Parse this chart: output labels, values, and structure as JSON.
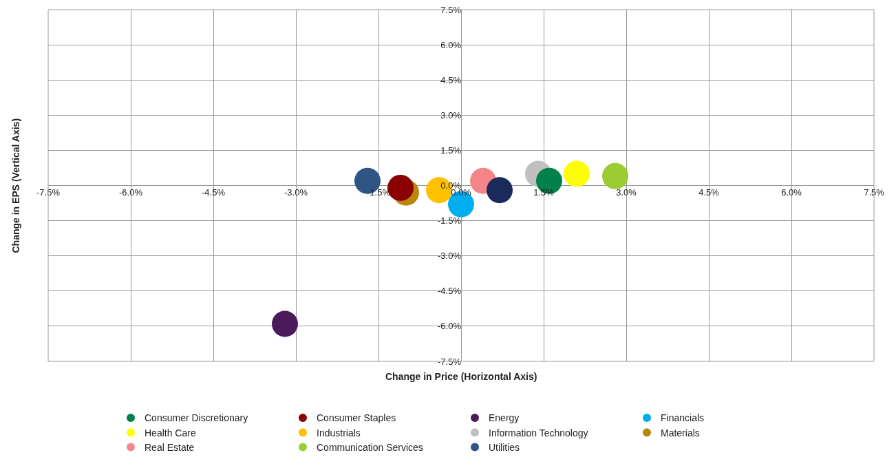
{
  "chart_data": {
    "type": "scatter",
    "xlabel": "Change in Price (Horizontal Axis)",
    "ylabel": "Change in EPS (Vertical Axis)",
    "xlim": [
      -7.5,
      7.5
    ],
    "ylim": [
      -7.5,
      7.5
    ],
    "xticks": [
      {
        "value": -7.5,
        "label": "-7.5%"
      },
      {
        "value": -6,
        "label": "-6.0%"
      },
      {
        "value": -4.5,
        "label": "-4.5%"
      },
      {
        "value": -3,
        "label": "-3.0%"
      },
      {
        "value": -1.5,
        "label": "-1.5%"
      },
      {
        "value": 0,
        "label": "0.0%"
      },
      {
        "value": 1.5,
        "label": "1.5%"
      },
      {
        "value": 3,
        "label": "3.0%"
      },
      {
        "value": 4.5,
        "label": "4.5%"
      },
      {
        "value": 6,
        "label": "6.0%"
      },
      {
        "value": 7.5,
        "label": "7.5%"
      }
    ],
    "yticks": [
      {
        "value": -7.5,
        "label": "-7.5%"
      },
      {
        "value": -6,
        "label": "-6.0%"
      },
      {
        "value": -4.5,
        "label": "-4.5%"
      },
      {
        "value": -3,
        "label": "-3.0%"
      },
      {
        "value": -1.5,
        "label": "-1.5%"
      },
      {
        "value": 0,
        "label": "0.0%"
      },
      {
        "value": 1.5,
        "label": "1.5%"
      },
      {
        "value": 3,
        "label": "3.0%"
      },
      {
        "value": 4.5,
        "label": "4.5%"
      },
      {
        "value": 6,
        "label": "6.0%"
      },
      {
        "value": 7.5,
        "label": "7.5%"
      }
    ],
    "grid": true,
    "legend": "bottom",
    "marker": "circle",
    "series": [
      {
        "name": "Consumer Discretionary",
        "color": "#00804a",
        "x": [
          1.6
        ],
        "values": [
          0.2
        ]
      },
      {
        "name": "Consumer Staples",
        "color": "#8b0000",
        "x": [
          -1.1
        ],
        "values": [
          -0.1
        ]
      },
      {
        "name": "Energy",
        "color": "#4a1a5a",
        "x": [
          -3.2
        ],
        "values": [
          -5.9
        ]
      },
      {
        "name": "Financials",
        "color": "#00aeef",
        "x": [
          0.0
        ],
        "values": [
          -0.8
        ]
      },
      {
        "name": "Health Care",
        "color": "#ffff00",
        "x": [
          2.1
        ],
        "values": [
          0.5
        ]
      },
      {
        "name": "Industrials",
        "color": "#ffc000",
        "x": [
          -0.4
        ],
        "values": [
          -0.2
        ]
      },
      {
        "name": "Information Technology",
        "color": "#c0c0c0",
        "x": [
          1.4
        ],
        "values": [
          0.5
        ]
      },
      {
        "name": "Materials",
        "color": "#b8860b",
        "x": [
          -1.0
        ],
        "values": [
          -0.3
        ]
      },
      {
        "name": "Real Estate",
        "color": "#f4868a",
        "x": [
          0.4
        ],
        "values": [
          0.2
        ]
      },
      {
        "name": "Communication Services",
        "color": "#9acd32",
        "x": [
          2.8
        ],
        "values": [
          0.4
        ]
      },
      {
        "name": "Utilities",
        "color": "#2f5585",
        "x": [
          -1.7
        ],
        "values": [
          0.2
        ]
      },
      {
        "color": "#1a2a5a",
        "x": [
          0.7
        ],
        "values": [
          -0.2
        ]
      }
    ]
  }
}
